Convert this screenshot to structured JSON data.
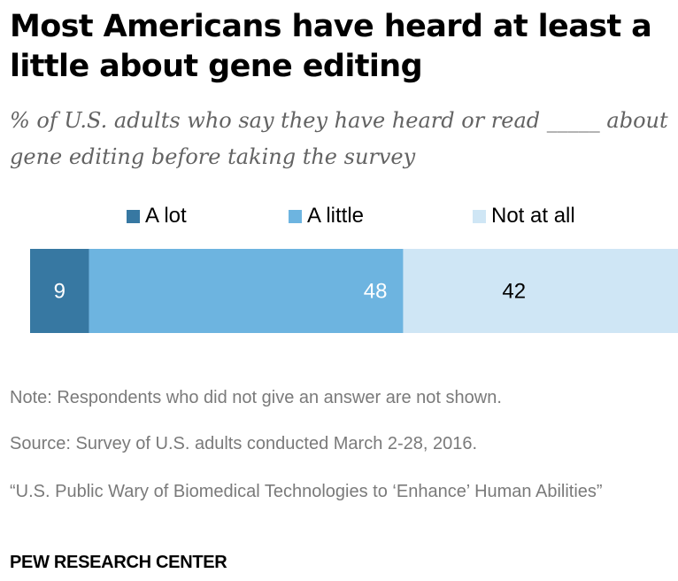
{
  "title": "Most Americans have heard at least a little about gene editing",
  "subtitle": "% of U.S. adults who say they have heard or read _____ about gene editing before taking the survey",
  "colors": {
    "a_lot": "#3778a2",
    "a_little": "#6db4e0",
    "not_at_all": "#cfe6f5"
  },
  "chart_data": {
    "type": "bar",
    "orientation": "horizontal-stacked",
    "categories": [
      ""
    ],
    "series": [
      {
        "name": "A lot",
        "values": [
          9
        ]
      },
      {
        "name": "A little",
        "values": [
          48
        ]
      },
      {
        "name": "Not at all",
        "values": [
          42
        ]
      }
    ],
    "xlim": [
      0,
      99
    ],
    "grid": false,
    "legend": "top"
  },
  "note": "Note: Respondents who did not give an answer are not shown.",
  "source": "Source: Survey of U.S. adults conducted March 2-28, 2016.",
  "report": "“U.S. Public Wary of Biomedical Technologies to ‘Enhance’ Human Abilities”",
  "brand": "PEW RESEARCH CENTER"
}
